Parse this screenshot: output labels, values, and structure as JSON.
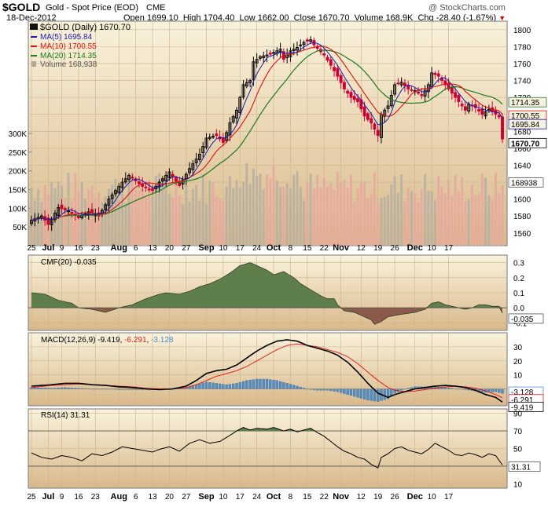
{
  "header": {
    "symbol": "$GOLD",
    "name": "Gold - Spot Price (EOD)",
    "exchange": "CME",
    "watermark": "@ StockCharts.com",
    "date": "18-Dec-2012",
    "quote": {
      "open_label": "Open",
      "open": "1699.10",
      "high_label": "High",
      "high": "1704.40",
      "low_label": "Low",
      "low": "1662.00",
      "close_label": "Close",
      "close": "1670.70",
      "volume_label": "Volume",
      "volume": "168.9K",
      "chg_label": "Chg",
      "chg": "-28.40 (-1.67%)"
    }
  },
  "legend": {
    "main": "$GOLD (Daily) 1670.70",
    "ma5": "MA(5) 1695.84",
    "ma10": "MA(10) 1700.55",
    "ma20": "MA(20) 1714.35",
    "volume": "Volume 168,938"
  },
  "colors": {
    "panel_bg": "#f3e9c7",
    "up_candle": "#000000",
    "down_candle": "#cc0033",
    "ma5": "#1b1bb0",
    "ma10": "#e01010",
    "ma20": "#1d7a1d",
    "cmf_pos": "#5e7f4c",
    "cmf_neg": "#8c5a4a",
    "macd_line": "#000000",
    "signal_line": "#e02020",
    "hist": "#4f8ec9",
    "rsi_line": "#000000"
  },
  "chart_data": [
    {
      "type": "candlestick",
      "panel": "price",
      "yaxis_side": "right",
      "ylim": [
        1545,
        1810
      ],
      "yticks": [
        1560,
        1580,
        1600,
        1620,
        1640,
        1660,
        1680,
        1700,
        1720,
        1740,
        1760,
        1780,
        1800
      ],
      "last_value_labels": [
        "1714.35",
        "1700.55",
        "1695.84",
        "1670.70"
      ],
      "volume_ylim": [
        0,
        600
      ],
      "volume_yticks": [
        {
          "v": 50,
          "label": "50K"
        },
        {
          "v": 100,
          "label": "100K"
        },
        {
          "v": 150,
          "label": "150K"
        },
        {
          "v": 200,
          "label": "200K"
        },
        {
          "v": 250,
          "label": "250K"
        },
        {
          "v": 300,
          "label": "300K"
        }
      ],
      "volume_last_label": "168938",
      "close_series_points": [
        [
          0,
          1575
        ],
        [
          3,
          1580
        ],
        [
          5,
          1570
        ],
        [
          8,
          1590
        ],
        [
          11,
          1586
        ],
        [
          14,
          1578
        ],
        [
          17,
          1585
        ],
        [
          20,
          1580
        ],
        [
          23,
          1600
        ],
        [
          27,
          1620
        ],
        [
          29,
          1628
        ],
        [
          33,
          1615
        ],
        [
          36,
          1610
        ],
        [
          38,
          1620
        ],
        [
          41,
          1632
        ],
        [
          44,
          1616
        ],
        [
          47,
          1636
        ],
        [
          50,
          1653
        ],
        [
          51,
          1662
        ],
        [
          52,
          1672
        ],
        [
          55,
          1675
        ],
        [
          57,
          1667
        ],
        [
          59,
          1690
        ],
        [
          61,
          1705
        ],
        [
          63,
          1735
        ],
        [
          65,
          1740
        ],
        [
          66,
          1762
        ],
        [
          68,
          1768
        ],
        [
          71,
          1771
        ],
        [
          74,
          1777
        ],
        [
          75,
          1765
        ],
        [
          77,
          1775
        ],
        [
          79,
          1779
        ],
        [
          81,
          1785
        ],
        [
          83,
          1788
        ],
        [
          84,
          1782
        ],
        [
          85,
          1778
        ],
        [
          87,
          1770
        ],
        [
          89,
          1758
        ],
        [
          91,
          1745
        ],
        [
          93,
          1730
        ],
        [
          95,
          1720
        ],
        [
          97,
          1715
        ],
        [
          99,
          1698
        ],
        [
          101,
          1690
        ],
        [
          103,
          1675
        ],
        [
          104,
          1700
        ],
        [
          106,
          1710
        ],
        [
          108,
          1735
        ],
        [
          110,
          1738
        ],
        [
          112,
          1730
        ],
        [
          114,
          1728
        ],
        [
          116,
          1722
        ],
        [
          118,
          1735
        ],
        [
          119,
          1749
        ],
        [
          121,
          1745
        ],
        [
          123,
          1735
        ],
        [
          125,
          1725
        ],
        [
          127,
          1715
        ],
        [
          129,
          1705
        ],
        [
          130,
          1712
        ],
        [
          132,
          1708
        ],
        [
          134,
          1700
        ],
        [
          136,
          1706
        ],
        [
          138,
          1700
        ],
        [
          139,
          1697
        ],
        [
          140,
          1671
        ]
      ]
    },
    {
      "type": "area",
      "panel": "cmf",
      "title": "CMF(20) -0.035",
      "ylim": [
        -0.15,
        0.35
      ],
      "yticks": [
        -0.1,
        0.0,
        0.1,
        0.2,
        0.3
      ],
      "last_value_label": "-0.035",
      "points": [
        [
          0,
          0.1
        ],
        [
          4,
          0.09
        ],
        [
          8,
          0.05
        ],
        [
          12,
          0.03
        ],
        [
          14,
          0.0
        ],
        [
          18,
          -0.01
        ],
        [
          22,
          -0.03
        ],
        [
          26,
          0.0
        ],
        [
          30,
          0.02
        ],
        [
          34,
          0.06
        ],
        [
          38,
          0.09
        ],
        [
          40,
          0.1
        ],
        [
          44,
          0.09
        ],
        [
          47,
          0.11
        ],
        [
          50,
          0.14
        ],
        [
          53,
          0.16
        ],
        [
          56,
          0.19
        ],
        [
          59,
          0.23
        ],
        [
          62,
          0.28
        ],
        [
          65,
          0.3
        ],
        [
          67,
          0.28
        ],
        [
          70,
          0.25
        ],
        [
          72,
          0.22
        ],
        [
          75,
          0.24
        ],
        [
          78,
          0.2
        ],
        [
          80,
          0.16
        ],
        [
          83,
          0.12
        ],
        [
          86,
          0.08
        ],
        [
          88,
          0.06
        ],
        [
          90,
          0.06
        ],
        [
          91,
          0.02
        ],
        [
          93,
          -0.02
        ],
        [
          96,
          -0.03
        ],
        [
          99,
          -0.06
        ],
        [
          101,
          -0.08
        ],
        [
          102,
          -0.11
        ],
        [
          104,
          -0.09
        ],
        [
          106,
          -0.06
        ],
        [
          108,
          -0.05
        ],
        [
          111,
          -0.04
        ],
        [
          114,
          -0.03
        ],
        [
          117,
          -0.01
        ],
        [
          119,
          0.03
        ],
        [
          121,
          0.04
        ],
        [
          123,
          0.02
        ],
        [
          125,
          0.01
        ],
        [
          127,
          0.0
        ],
        [
          129,
          -0.01
        ],
        [
          131,
          0.0
        ],
        [
          133,
          0.02
        ],
        [
          135,
          0.02
        ],
        [
          137,
          0.01
        ],
        [
          139,
          0.01
        ],
        [
          140,
          -0.035
        ]
      ]
    },
    {
      "type": "line",
      "panel": "macd",
      "title": "MACD(12,26,9) -9.419, -6.291, -3.128",
      "title_parts": {
        "name": "MACD(12,26,9)",
        "macd": "-9.419",
        "signal": "-6.291",
        "hist": "-3.128"
      },
      "ylim": [
        -12,
        40
      ],
      "yticks": [
        0,
        10,
        20,
        30
      ],
      "last_value_labels": [
        "-3.128",
        "-6.291",
        "-9.419"
      ],
      "macd_points": [
        [
          0,
          2
        ],
        [
          6,
          3
        ],
        [
          10,
          4
        ],
        [
          14,
          4
        ],
        [
          18,
          3
        ],
        [
          22,
          2.5
        ],
        [
          26,
          1.5
        ],
        [
          30,
          1
        ],
        [
          34,
          0
        ],
        [
          38,
          -0.5
        ],
        [
          42,
          0
        ],
        [
          46,
          2
        ],
        [
          49,
          6
        ],
        [
          52,
          11
        ],
        [
          55,
          13
        ],
        [
          58,
          14
        ],
        [
          61,
          17
        ],
        [
          64,
          22
        ],
        [
          67,
          27
        ],
        [
          70,
          31
        ],
        [
          73,
          34
        ],
        [
          76,
          35
        ],
        [
          79,
          34
        ],
        [
          82,
          31
        ],
        [
          85,
          29
        ],
        [
          88,
          27
        ],
        [
          91,
          24
        ],
        [
          94,
          19
        ],
        [
          97,
          12
        ],
        [
          100,
          4
        ],
        [
          103,
          -3
        ],
        [
          106,
          -6
        ],
        [
          108,
          -4
        ],
        [
          111,
          -2
        ],
        [
          114,
          0
        ],
        [
          117,
          1
        ],
        [
          120,
          2
        ],
        [
          123,
          2.5
        ],
        [
          126,
          2
        ],
        [
          129,
          1
        ],
        [
          132,
          -1
        ],
        [
          135,
          -4
        ],
        [
          138,
          -6
        ],
        [
          140,
          -9.419
        ]
      ],
      "signal_points": [
        [
          0,
          1
        ],
        [
          6,
          2.5
        ],
        [
          10,
          3
        ],
        [
          14,
          3.5
        ],
        [
          18,
          3
        ],
        [
          22,
          2.5
        ],
        [
          26,
          2
        ],
        [
          30,
          1.5
        ],
        [
          34,
          0.5
        ],
        [
          38,
          0
        ],
        [
          42,
          0
        ],
        [
          46,
          1
        ],
        [
          49,
          3
        ],
        [
          52,
          6
        ],
        [
          55,
          9
        ],
        [
          58,
          11
        ],
        [
          61,
          13
        ],
        [
          64,
          16
        ],
        [
          67,
          20
        ],
        [
          70,
          24
        ],
        [
          73,
          28
        ],
        [
          76,
          31
        ],
        [
          79,
          32
        ],
        [
          82,
          31
        ],
        [
          85,
          30
        ],
        [
          88,
          28
        ],
        [
          91,
          26
        ],
        [
          94,
          23
        ],
        [
          97,
          18
        ],
        [
          100,
          12
        ],
        [
          103,
          6
        ],
        [
          106,
          1
        ],
        [
          108,
          -1
        ],
        [
          111,
          -2
        ],
        [
          114,
          -1.5
        ],
        [
          117,
          -0.5
        ],
        [
          120,
          0.5
        ],
        [
          123,
          1.5
        ],
        [
          126,
          1.8
        ],
        [
          129,
          1.5
        ],
        [
          132,
          0.5
        ],
        [
          135,
          -1.5
        ],
        [
          138,
          -4
        ],
        [
          140,
          -6.291
        ]
      ]
    },
    {
      "type": "line",
      "panel": "rsi",
      "title": "RSI(14) 31.31",
      "ylim": [
        5,
        95
      ],
      "yticks": [
        10,
        30,
        50,
        70,
        90
      ],
      "reference_lines": [
        30,
        70
      ],
      "last_value_label": "31.31",
      "points": [
        [
          0,
          45
        ],
        [
          3,
          40
        ],
        [
          6,
          38
        ],
        [
          9,
          42
        ],
        [
          12,
          40
        ],
        [
          15,
          36
        ],
        [
          18,
          44
        ],
        [
          21,
          42
        ],
        [
          24,
          46
        ],
        [
          27,
          52
        ],
        [
          30,
          50
        ],
        [
          33,
          48
        ],
        [
          36,
          46
        ],
        [
          38,
          49
        ],
        [
          41,
          52
        ],
        [
          44,
          47
        ],
        [
          47,
          56
        ],
        [
          50,
          60
        ],
        [
          53,
          56
        ],
        [
          56,
          58
        ],
        [
          59,
          65
        ],
        [
          61,
          70
        ],
        [
          63,
          74
        ],
        [
          65,
          71
        ],
        [
          67,
          73
        ],
        [
          70,
          72
        ],
        [
          72,
          74
        ],
        [
          75,
          70
        ],
        [
          77,
          72
        ],
        [
          79,
          69
        ],
        [
          81,
          71
        ],
        [
          83,
          73
        ],
        [
          85,
          68
        ],
        [
          87,
          64
        ],
        [
          89,
          58
        ],
        [
          91,
          52
        ],
        [
          93,
          47
        ],
        [
          95,
          44
        ],
        [
          97,
          40
        ],
        [
          99,
          38
        ],
        [
          101,
          32
        ],
        [
          103,
          28
        ],
        [
          104,
          40
        ],
        [
          106,
          44
        ],
        [
          108,
          50
        ],
        [
          110,
          52
        ],
        [
          112,
          48
        ],
        [
          114,
          46
        ],
        [
          116,
          44
        ],
        [
          118,
          49
        ],
        [
          120,
          56
        ],
        [
          122,
          52
        ],
        [
          124,
          48
        ],
        [
          126,
          43
        ],
        [
          128,
          42
        ],
        [
          130,
          45
        ],
        [
          132,
          43
        ],
        [
          134,
          40
        ],
        [
          136,
          44
        ],
        [
          138,
          42
        ],
        [
          140,
          31.31
        ]
      ]
    }
  ],
  "x_axis": {
    "tick_labels": [
      {
        "i": 0,
        "label": "25"
      },
      {
        "i": 5,
        "label": "Jul"
      },
      {
        "i": 9,
        "label": "9"
      },
      {
        "i": 14,
        "label": "16"
      },
      {
        "i": 19,
        "label": "23"
      },
      {
        "i": 26,
        "label": "Aug"
      },
      {
        "i": 31,
        "label": "6"
      },
      {
        "i": 36,
        "label": "13"
      },
      {
        "i": 41,
        "label": "20"
      },
      {
        "i": 46,
        "label": "27"
      },
      {
        "i": 52,
        "label": "Sep"
      },
      {
        "i": 57,
        "label": "10"
      },
      {
        "i": 62,
        "label": "17"
      },
      {
        "i": 67,
        "label": "24"
      },
      {
        "i": 72,
        "label": "Oct"
      },
      {
        "i": 77,
        "label": "8"
      },
      {
        "i": 82,
        "label": "15"
      },
      {
        "i": 87,
        "label": "22"
      },
      {
        "i": 92,
        "label": "Nov"
      },
      {
        "i": 98,
        "label": "12"
      },
      {
        "i": 103,
        "label": "19"
      },
      {
        "i": 108,
        "label": "26"
      },
      {
        "i": 114,
        "label": "Dec"
      },
      {
        "i": 119,
        "label": "10"
      },
      {
        "i": 124,
        "label": "17"
      }
    ]
  }
}
